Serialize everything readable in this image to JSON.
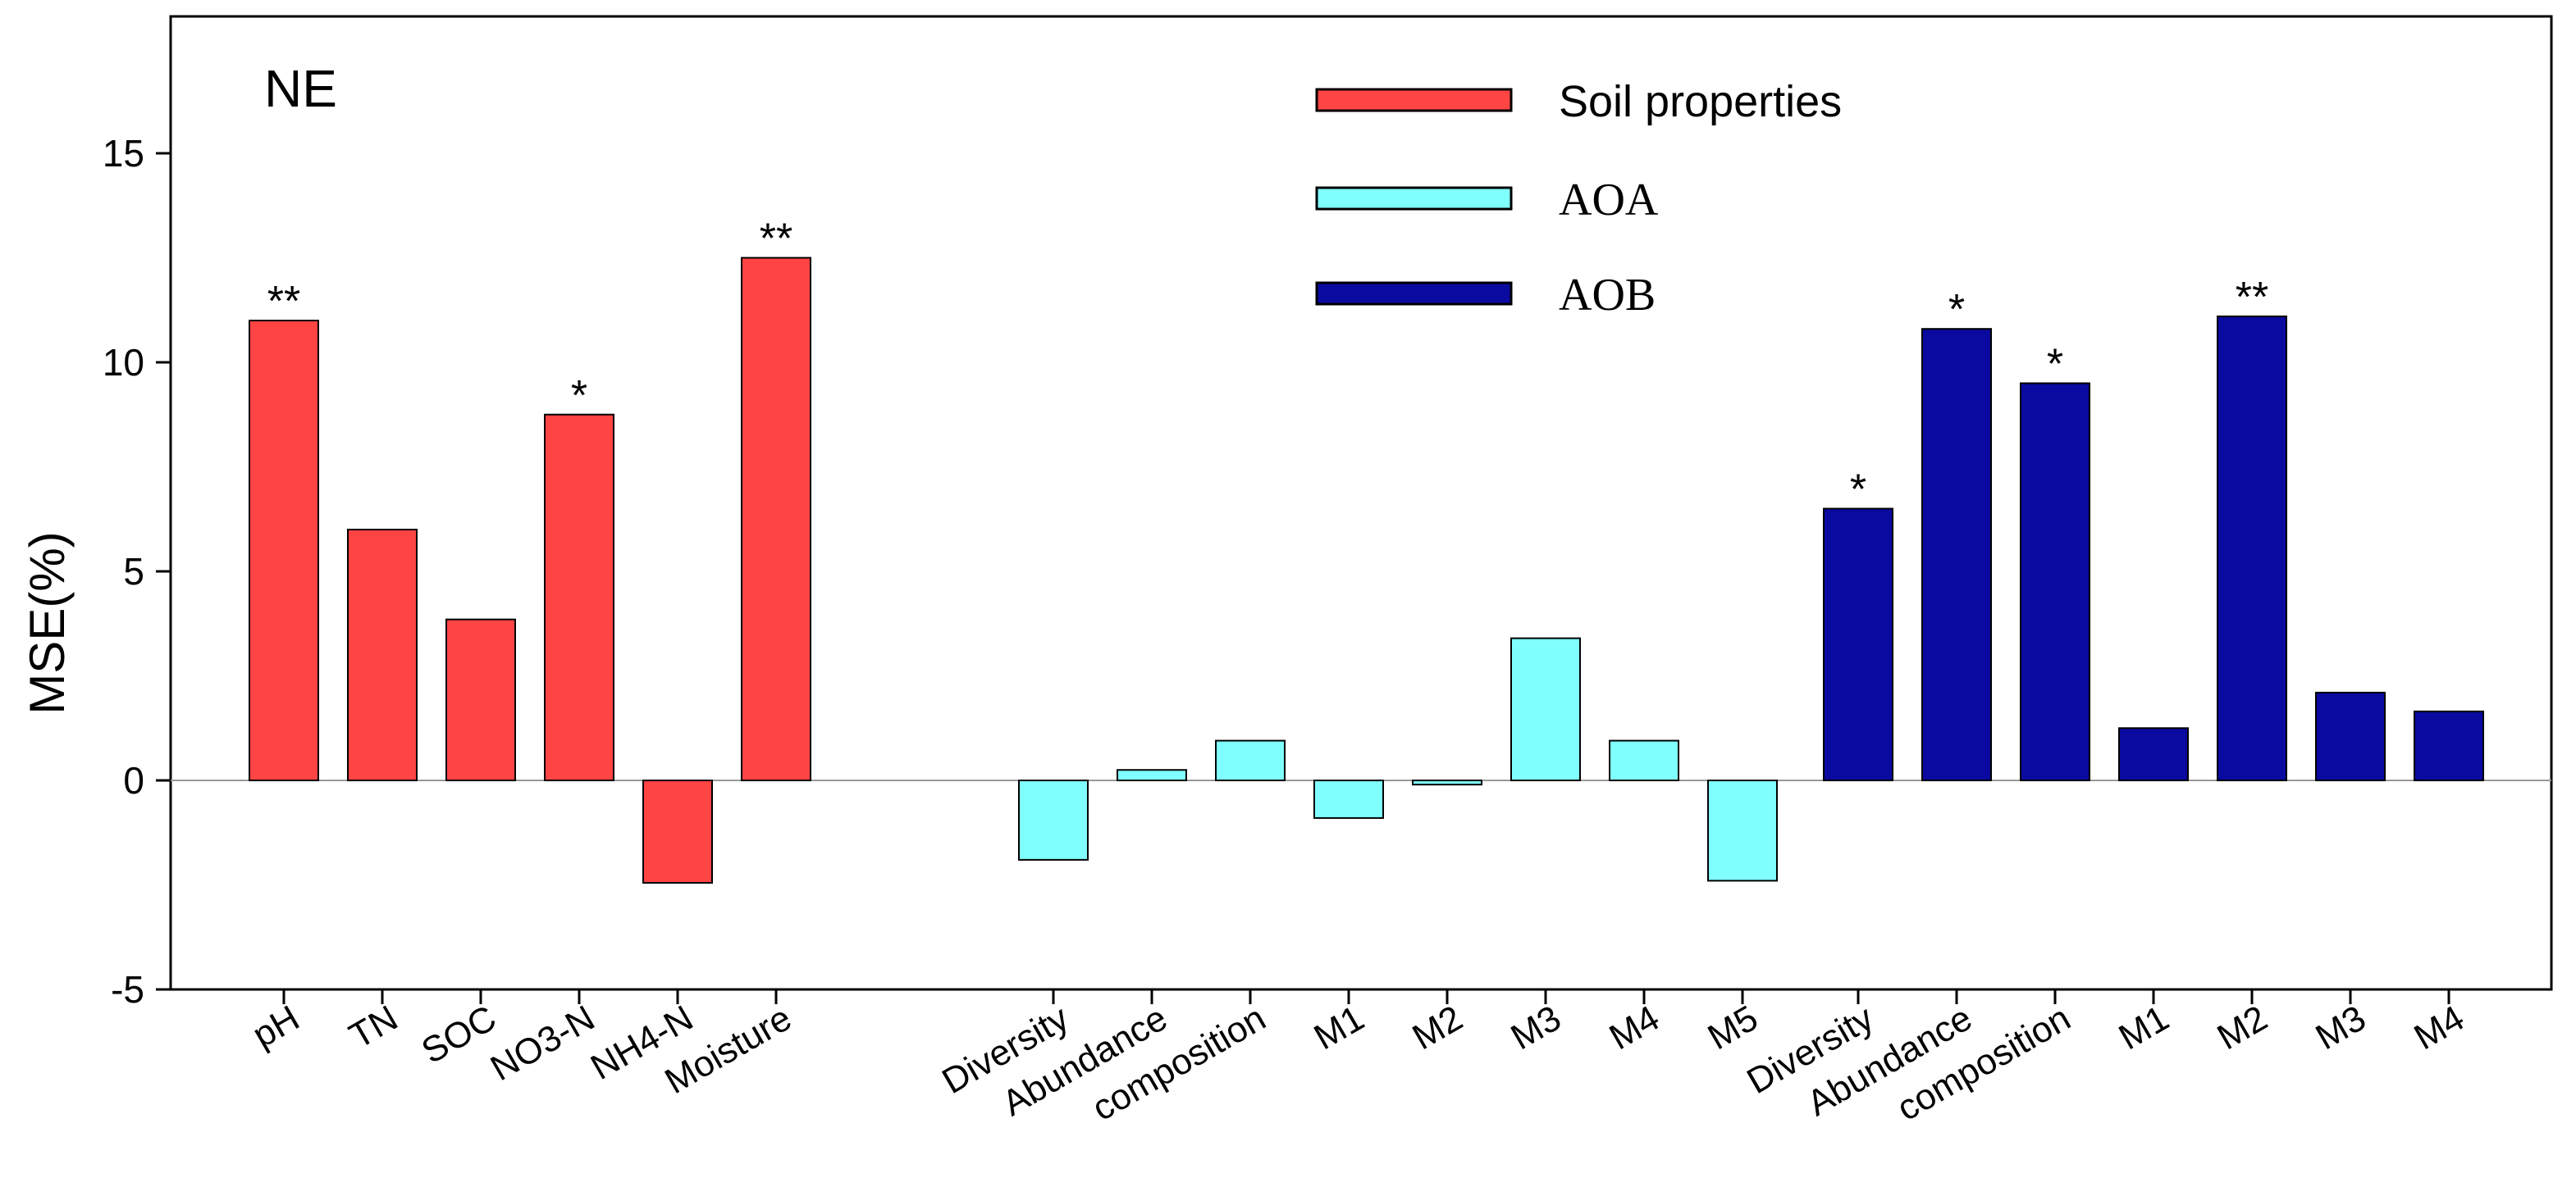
{
  "chart_data": {
    "type": "bar",
    "panel_label": "NE",
    "ylabel": "MSE(%)",
    "xlabel": "",
    "ylim": [
      -5,
      17.5
    ],
    "yticks": [
      -5,
      0,
      5,
      10,
      15
    ],
    "colors": {
      "soil": "#ff4444",
      "aoa": "#80ffff",
      "aob": "#0a0aa0",
      "zero_line": "#999999",
      "axis": "#000000"
    },
    "legend": [
      {
        "name": "Soil properties",
        "color": "#ff4444",
        "font": "sans"
      },
      {
        "name": "AOA",
        "color": "#80ffff",
        "font": "serif"
      },
      {
        "name": "AOB",
        "color": "#0a0aa0",
        "font": "serif"
      }
    ],
    "series": [
      {
        "name": "Soil properties",
        "categories": [
          "pH",
          "TN",
          "SOC",
          "NO3-N",
          "NH4-N",
          "Moisture"
        ],
        "values": [
          11.0,
          6.0,
          3.85,
          8.75,
          -2.45,
          12.5
        ],
        "sig": [
          "**",
          "",
          "",
          "*",
          "",
          "**"
        ]
      },
      {
        "name": "AOA",
        "categories": [
          "Diversity",
          "Abundance",
          "composition",
          "M1",
          "M2",
          "M3",
          "M4",
          "M5"
        ],
        "values": [
          -1.9,
          0.25,
          0.95,
          -0.9,
          -0.1,
          3.4,
          0.95,
          -2.4
        ],
        "sig": [
          "",
          "",
          "",
          "",
          "",
          "",
          "",
          ""
        ]
      },
      {
        "name": "AOB",
        "categories": [
          "Diversity",
          "Abundance",
          "composition",
          "M1",
          "M2",
          "M3",
          "M4"
        ],
        "values": [
          6.5,
          10.8,
          9.5,
          1.25,
          11.1,
          2.1,
          1.65
        ],
        "sig": [
          "*",
          "*",
          "*",
          "",
          "**",
          "",
          ""
        ]
      }
    ]
  }
}
